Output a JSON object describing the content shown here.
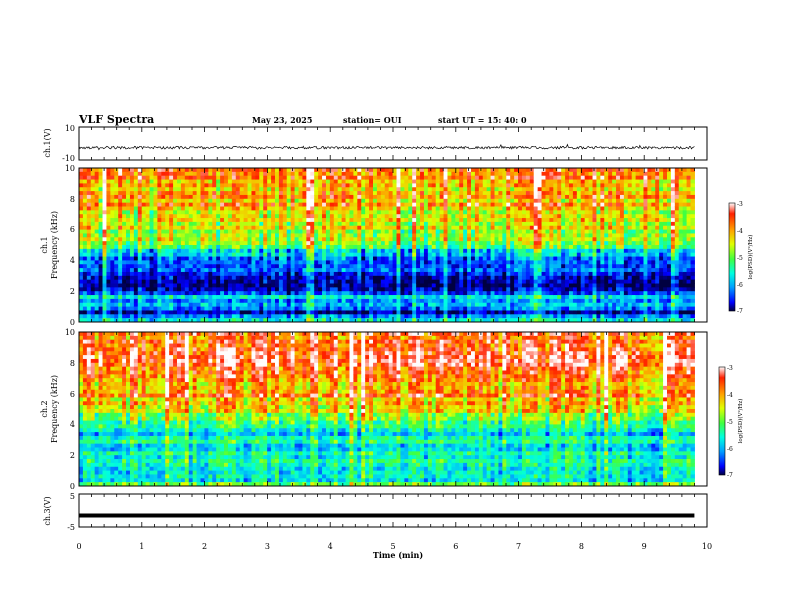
{
  "header": {
    "title": "VLF Spectra",
    "date": "May 23, 2025",
    "station": "station= OUI",
    "start": "start  UT =  15: 40: 0"
  },
  "panels": {
    "ch1": {
      "ylabel": "ch.1(V)",
      "ticks": [
        "10",
        "-10"
      ]
    },
    "spec1": {
      "ylabel_line1": "ch.1",
      "ylabel_line2": "Frequency (kHz)",
      "ticks": [
        "0",
        "2",
        "4",
        "6",
        "8",
        "10"
      ]
    },
    "spec2": {
      "ylabel_line1": "ch.2",
      "ylabel_line2": "Frequency (kHz)",
      "ticks": [
        "0",
        "2",
        "4",
        "6",
        "8",
        "10"
      ]
    },
    "ch3": {
      "ylabel": "ch.3(V)",
      "ticks": [
        "5",
        "-5"
      ]
    }
  },
  "colorbar1": {
    "label": "log(PSD)(V²/Hz)",
    "ticks": [
      "-3",
      "-4",
      "-5",
      "-6",
      "-7"
    ]
  },
  "colorbar2": {
    "label": "log(PSD)(V²/Hz)",
    "ticks": [
      "-3",
      "-4",
      "-5",
      "-6",
      "-7"
    ]
  },
  "xaxis": {
    "label": "Time (min)",
    "ticks": [
      "0",
      "1",
      "2",
      "3",
      "4",
      "5",
      "6",
      "7",
      "8",
      "9",
      "10"
    ]
  },
  "chart_data": {
    "type": "heatmap",
    "title": "VLF Spectra",
    "xlabel": "Time (min)",
    "xlim": [
      0,
      10
    ],
    "data_extent_min": 9.8,
    "ylim_frequency_khz": [
      0,
      10
    ],
    "colorscale_log_psd": [
      -7,
      -3
    ],
    "colormap": [
      "#000040",
      "#0000ff",
      "#00a0ff",
      "#00ffe0",
      "#40ff40",
      "#e0ff00",
      "#ffa000",
      "#ff2000",
      "#ffffff"
    ],
    "panels": [
      {
        "name": "ch.1(V)",
        "type": "line",
        "ylim": [
          -10,
          10
        ],
        "baseline": -2.5,
        "spread": 0.8
      },
      {
        "name": "ch.1",
        "type": "heatmap",
        "ylabel": "Frequency (kHz)",
        "frequency_profile_khz": [
          0,
          0.5,
          1,
          1.5,
          2,
          2.5,
          3,
          3.5,
          4,
          4.5,
          5,
          5.5,
          6,
          6.5,
          7,
          7.5,
          8,
          8.5,
          9,
          9.5,
          10
        ],
        "mean_log_psd": [
          -5.0,
          -6.6,
          -6.0,
          -5.6,
          -6.7,
          -6.9,
          -6.8,
          -6.3,
          -6.2,
          -6.0,
          -5.2,
          -4.8,
          -4.6,
          -4.5,
          -4.3,
          -4.2,
          -4.2,
          -4.1,
          -4.0,
          -4.0,
          -4.0
        ]
      },
      {
        "name": "ch.2",
        "type": "heatmap",
        "ylabel": "Frequency (kHz)",
        "frequency_profile_khz": [
          0,
          0.5,
          1,
          1.5,
          2,
          2.5,
          3,
          3.5,
          4,
          4.5,
          5,
          5.5,
          6,
          6.5,
          7,
          7.5,
          8,
          8.5,
          9,
          9.5,
          10
        ],
        "mean_log_psd": [
          -5.0,
          -5.6,
          -5.4,
          -5.2,
          -5.6,
          -5.4,
          -5.6,
          -5.5,
          -5.2,
          -4.8,
          -4.5,
          -4.2,
          -3.9,
          -3.8,
          -3.7,
          -3.6,
          -3.6,
          -3.6,
          -3.6,
          -3.6,
          -3.6
        ]
      },
      {
        "name": "ch.3(V)",
        "type": "line",
        "ylim": [
          -5,
          5
        ],
        "baseline": -1.5,
        "spread": 0.05
      }
    ]
  }
}
